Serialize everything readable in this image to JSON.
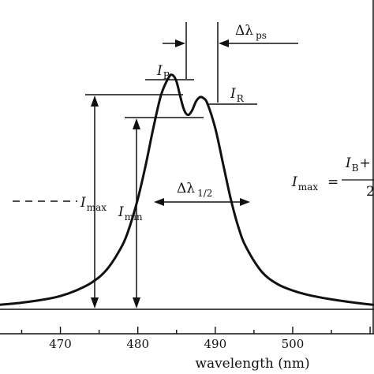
{
  "chart_data": {
    "type": "line",
    "title": "",
    "xlabel": "wavelength (nm)",
    "ylabel": "",
    "xlim": [
      462.2,
      510.5
    ],
    "ylim": [
      0,
      1.25
    ],
    "xticks": [
      470,
      480,
      490,
      500
    ],
    "xtick_labels": [
      "470",
      "480",
      "490",
      "500"
    ],
    "grid": false,
    "legend": "none",
    "series": [
      {
        "x": [
          462,
          465,
          468,
          470,
          472,
          474,
          476,
          478,
          479,
          480,
          481,
          482,
          483,
          484,
          484.5,
          485,
          485.5,
          486,
          486.5,
          487,
          487.5,
          488,
          488.5,
          489,
          490,
          491,
          492,
          493,
          494,
          496,
          498,
          500,
          502,
          505,
          508,
          510.5
        ],
        "y": [
          0.02,
          0.03,
          0.045,
          0.06,
          0.085,
          0.12,
          0.18,
          0.29,
          0.38,
          0.5,
          0.65,
          0.82,
          0.97,
          1.05,
          1.06,
          1.03,
          0.96,
          0.9,
          0.88,
          0.9,
          0.94,
          0.96,
          0.955,
          0.93,
          0.82,
          0.66,
          0.5,
          0.37,
          0.28,
          0.17,
          0.115,
          0.085,
          0.065,
          0.045,
          0.03,
          0.02
        ]
      }
    ],
    "annotations": {
      "delta_ps": {
        "main": "Δλ",
        "sub": "ps"
      },
      "delta_half": {
        "main": "Δλ",
        "sub": "1/2"
      },
      "i_b": {
        "main": "I",
        "sub": "B"
      },
      "i_r": {
        "main": "I",
        "sub": "R"
      },
      "i_max": {
        "main": "I",
        "sub": "max"
      },
      "i_min": {
        "main": "I",
        "sub": "min"
      },
      "formula": {
        "lhs_main": "I",
        "lhs_sub": "max",
        "eq": "=",
        "num_main": "I",
        "num_sub": "B",
        "num_tail": "+",
        "den": "2"
      }
    }
  }
}
